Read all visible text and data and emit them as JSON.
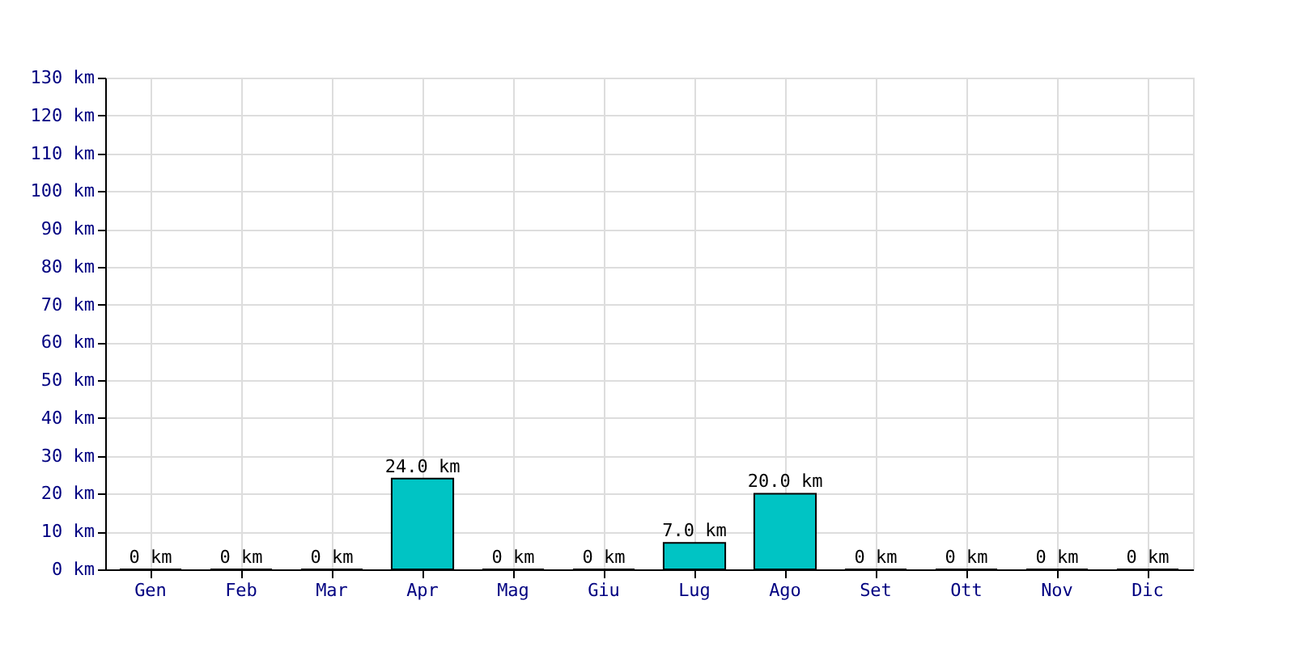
{
  "chart_data": {
    "type": "bar",
    "categories": [
      "Gen",
      "Feb",
      "Mar",
      "Apr",
      "Mag",
      "Giu",
      "Lug",
      "Ago",
      "Set",
      "Ott",
      "Nov",
      "Dic"
    ],
    "values": [
      0,
      0,
      0,
      24,
      0,
      0,
      7,
      20,
      0,
      0,
      0,
      0
    ],
    "value_labels": [
      "0 km",
      "0 km",
      "0 km",
      "24.0 km",
      "0 km",
      "0 km",
      "7.0 km",
      "20.0 km",
      "0 km",
      "0 km",
      "0 km",
      "0 km"
    ],
    "color": "#00c4c4",
    "ylim": [
      0,
      130
    ],
    "yticks": [
      {
        "value": 0,
        "label": "0 km"
      },
      {
        "value": 10,
        "label": "10 km"
      },
      {
        "value": 20,
        "label": "20 km"
      },
      {
        "value": 30,
        "label": "30 km"
      },
      {
        "value": 40,
        "label": "40 km"
      },
      {
        "value": 50,
        "label": "50 km"
      },
      {
        "value": 60,
        "label": "60 km"
      },
      {
        "value": 70,
        "label": "70 km"
      },
      {
        "value": 80,
        "label": "80 km"
      },
      {
        "value": 90,
        "label": "90 km"
      },
      {
        "value": 100,
        "label": "100 km"
      },
      {
        "value": 110,
        "label": "110 km"
      },
      {
        "value": 120,
        "label": "120 km"
      },
      {
        "value": 130,
        "label": "130 km"
      }
    ],
    "grid": true
  }
}
